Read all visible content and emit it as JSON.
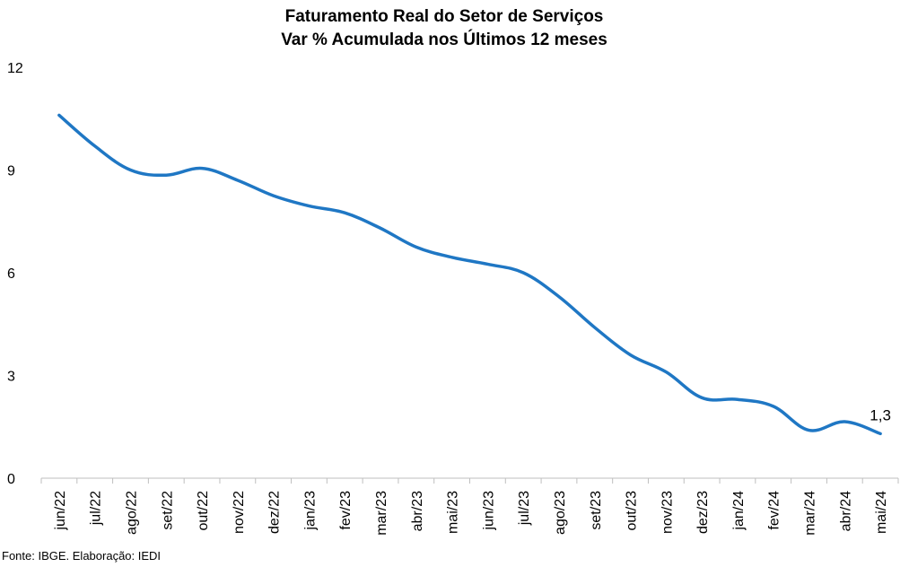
{
  "chart_data": {
    "type": "line",
    "title": "Faturamento Real do Setor de Serviços",
    "subtitle": "Var % Acumulada nos Últimos 12 meses",
    "source": "Fonte: IBGE. Elaboração: IEDI",
    "categories": [
      "jun/22",
      "jul/22",
      "ago/22",
      "set/22",
      "out/22",
      "nov/22",
      "dez/22",
      "jan/23",
      "fev/23",
      "mar/23",
      "abr/23",
      "mai/23",
      "jun/23",
      "jul/23",
      "ago/23",
      "set/23",
      "out/23",
      "nov/23",
      "dez/23",
      "jan/24",
      "fev/24",
      "mar/24",
      "abr/24",
      "mai/24"
    ],
    "series": [
      {
        "values": [
          10.6,
          9.7,
          9.0,
          8.85,
          9.05,
          8.7,
          8.25,
          7.95,
          7.75,
          7.3,
          6.75,
          6.45,
          6.25,
          6.0,
          5.3,
          4.4,
          3.6,
          3.1,
          2.35,
          2.3,
          2.1,
          1.4,
          1.65,
          1.3
        ],
        "color": "#1f77c4"
      }
    ],
    "ylim": [
      0,
      12
    ],
    "yticks": [
      "0",
      "3",
      "6",
      "9",
      "12"
    ],
    "last_label": "1,3",
    "grid": false
  }
}
